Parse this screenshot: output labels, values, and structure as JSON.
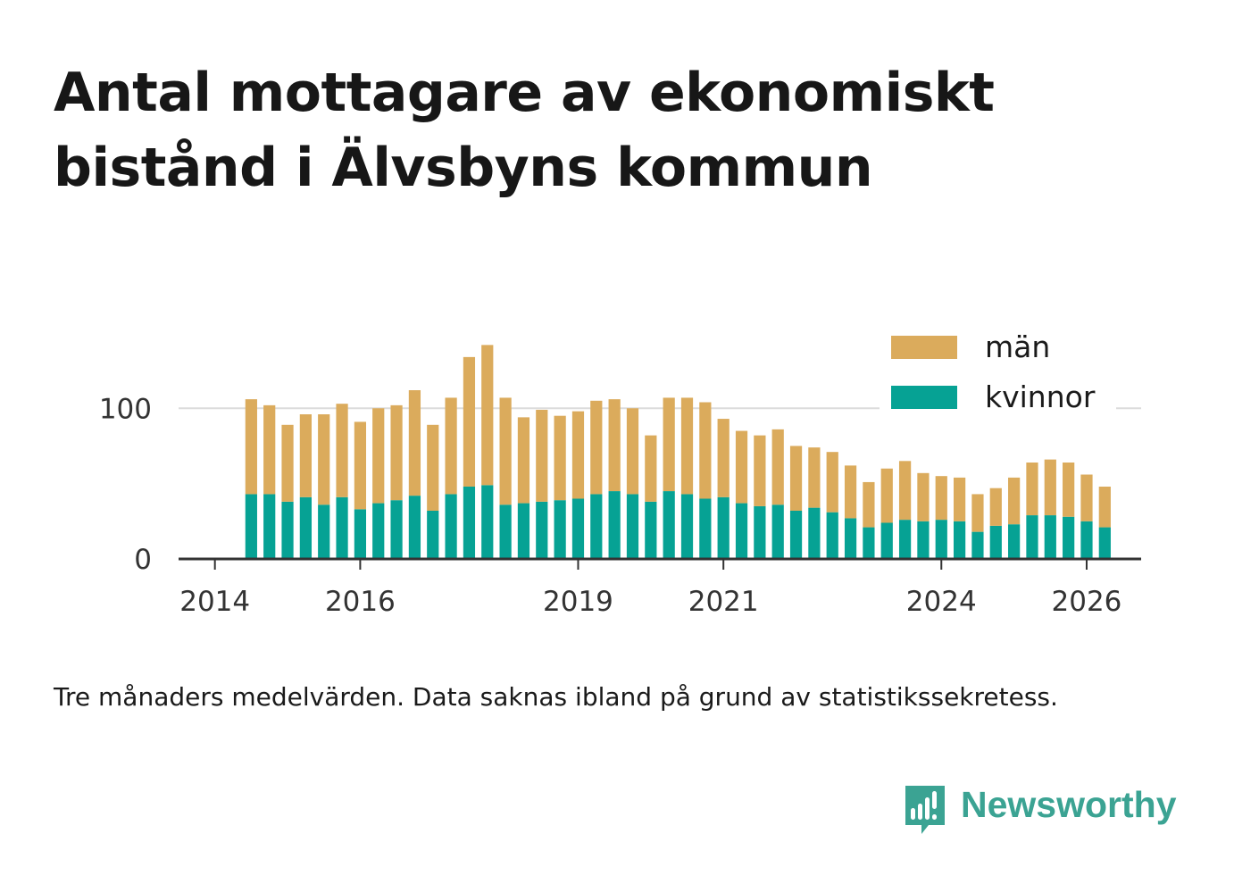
{
  "title": "Antal mottagare av ekonomiskt bistånd i Älvsbyns kommun",
  "caption": "Tre månaders medelvärden. Data saknas ibland på grund av statistikssekretess.",
  "brand": {
    "name": "Newsworthy",
    "icon": "newsworthy-logo-icon"
  },
  "colors": {
    "men": "#dbab5c",
    "women": "#06a294",
    "axis": "#333333",
    "grid": "#dcdcdc",
    "text": "#333333",
    "brand": "#3ba393"
  },
  "chart_data": {
    "type": "bar",
    "stacked": true,
    "x_start": "2014-07",
    "step_months": 3,
    "x_domain": [
      "2013-07",
      "2026-10"
    ],
    "ylim": [
      0,
      160
    ],
    "yticks": [
      0,
      100
    ],
    "xtick_labels": [
      "2014",
      "2016",
      "2019",
      "2021",
      "2024",
      "2026"
    ],
    "legend_position": "top-right",
    "grid": true,
    "series": [
      {
        "name": "kvinnor",
        "values": [
          43,
          43,
          38,
          41,
          36,
          41,
          33,
          37,
          39,
          42,
          32,
          43,
          48,
          49,
          36,
          37,
          38,
          39,
          40,
          43,
          45,
          43,
          38,
          45,
          43,
          40,
          41,
          37,
          35,
          36,
          32,
          34,
          31,
          27,
          21,
          24,
          26,
          25,
          26,
          25,
          18,
          22,
          23,
          29,
          29,
          28,
          25,
          21
        ]
      },
      {
        "name": "män",
        "values": [
          63,
          59,
          51,
          55,
          60,
          62,
          58,
          63,
          63,
          70,
          57,
          64,
          86,
          93,
          71,
          57,
          61,
          56,
          58,
          62,
          61,
          57,
          44,
          62,
          64,
          64,
          52,
          48,
          47,
          50,
          43,
          40,
          40,
          35,
          30,
          36,
          39,
          32,
          29,
          29,
          25,
          25,
          31,
          35,
          37,
          36,
          31,
          27
        ]
      }
    ]
  }
}
